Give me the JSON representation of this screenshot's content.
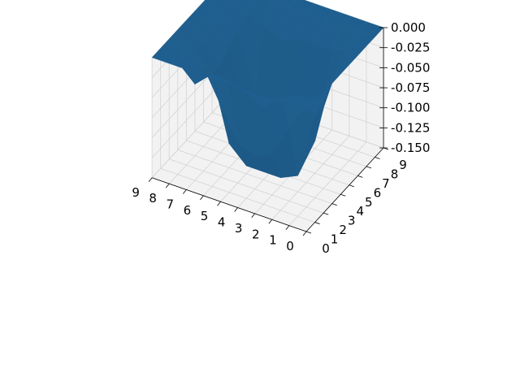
{
  "chart_data": {
    "type": "surface3d",
    "title": "",
    "xlabel": "",
    "ylabel": "",
    "zlabel": "",
    "x_ticks": [
      "0",
      "1",
      "2",
      "3",
      "4",
      "5",
      "6",
      "7",
      "8",
      "9"
    ],
    "y_ticks": [
      "0",
      "1",
      "2",
      "3",
      "4",
      "5",
      "6",
      "7",
      "8",
      "9"
    ],
    "z_ticks": [
      "0.000",
      "-0.025",
      "-0.050",
      "-0.075",
      "-0.100",
      "-0.125",
      "-0.150"
    ],
    "xlim": [
      0,
      9
    ],
    "ylim": [
      0,
      9
    ],
    "zlim": [
      -0.15,
      0.0
    ],
    "grid": true,
    "surface_color": "#1f5f8f",
    "pane_color": "#f2f2f2",
    "grid_color": "#d4d4d4",
    "z_grid": [
      [
        0.0,
        0.0,
        0.0,
        0.0,
        0.0,
        0.0,
        0.0,
        0.0,
        0.0,
        0.0
      ],
      [
        0.0,
        0.0,
        -0.02,
        -0.05,
        -0.03,
        -0.02,
        -0.01,
        -0.01,
        0.0,
        0.0
      ],
      [
        0.0,
        -0.01,
        -0.06,
        -0.13,
        -0.12,
        -0.11,
        -0.08,
        -0.02,
        0.0,
        0.0
      ],
      [
        0.0,
        -0.03,
        -0.1,
        -0.14,
        -0.14,
        -0.12,
        -0.08,
        -0.02,
        -0.01,
        0.0
      ],
      [
        0.0,
        -0.02,
        -0.11,
        -0.14,
        -0.14,
        -0.13,
        -0.09,
        -0.02,
        0.0,
        0.0
      ],
      [
        0.0,
        -0.01,
        -0.1,
        -0.14,
        -0.15,
        -0.14,
        -0.1,
        -0.03,
        0.0,
        0.0
      ],
      [
        0.0,
        -0.01,
        -0.06,
        -0.12,
        -0.13,
        -0.12,
        -0.09,
        -0.02,
        0.0,
        0.0
      ],
      [
        0.0,
        -0.03,
        -0.02,
        -0.04,
        -0.04,
        -0.03,
        -0.02,
        -0.01,
        0.0,
        0.0
      ],
      [
        0.0,
        -0.01,
        -0.01,
        -0.02,
        -0.02,
        -0.01,
        -0.01,
        0.0,
        0.0,
        0.0
      ],
      [
        0.0,
        0.0,
        0.0,
        0.0,
        0.0,
        0.0,
        0.0,
        0.0,
        0.0,
        0.0
      ]
    ]
  }
}
